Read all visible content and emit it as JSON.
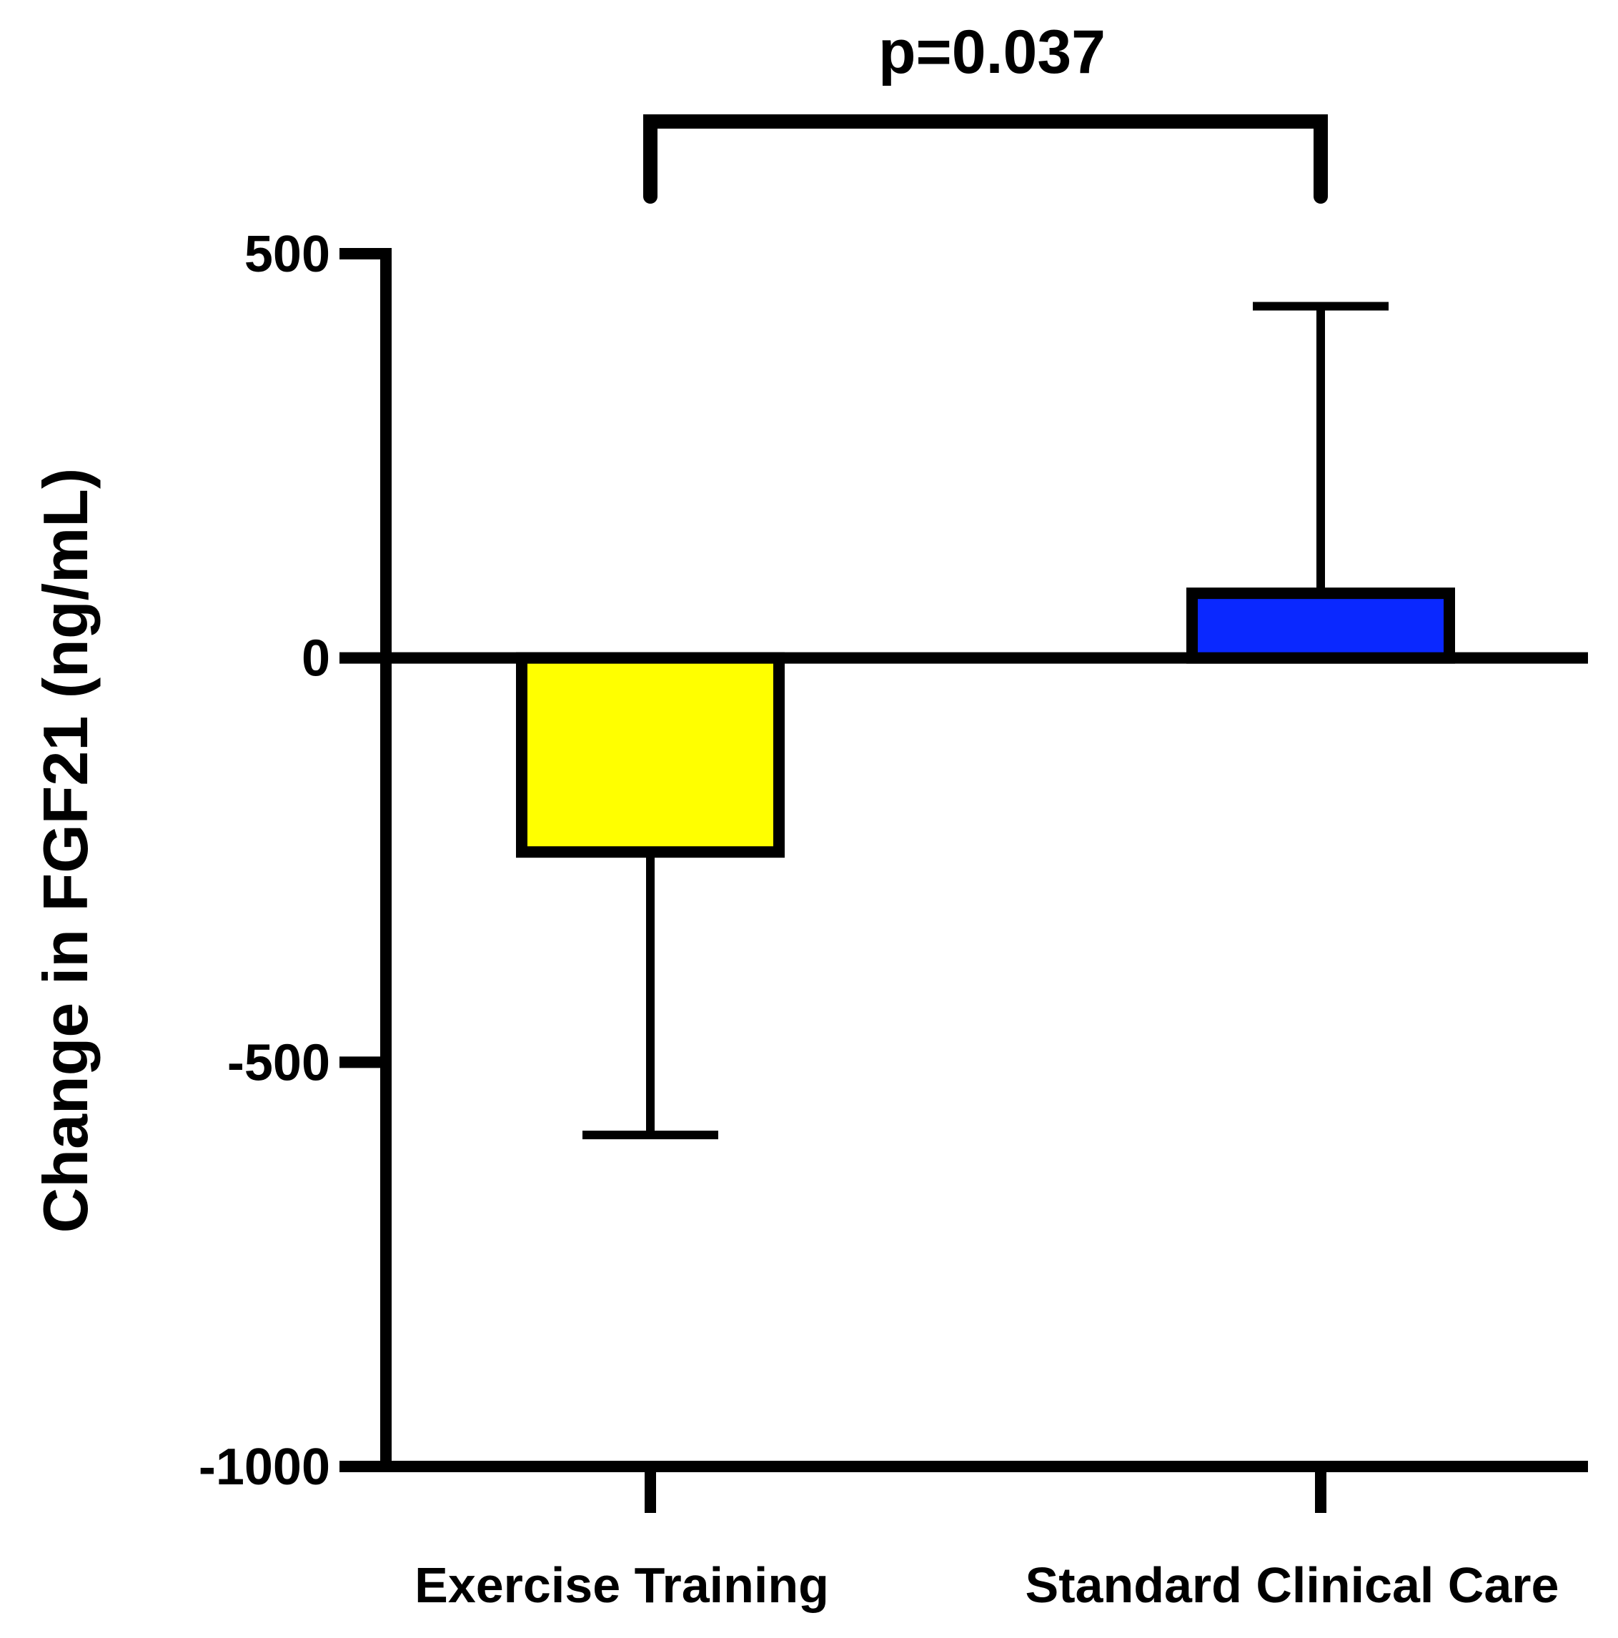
{
  "chart_data": {
    "type": "bar",
    "title": "",
    "xlabel": "",
    "ylabel": "Change in FGF21 (ng/mL)",
    "ylim": [
      -1000,
      500
    ],
    "yticks": [
      500,
      0,
      -500,
      -1000
    ],
    "ytick_labels": [
      "500",
      "0",
      "-500",
      "-1000"
    ],
    "categories": [
      "Exercise Training",
      "Standard Clinical Care"
    ],
    "values": [
      -240,
      80
    ],
    "error_bars": [
      {
        "direction": "down",
        "error": 350
      },
      {
        "direction": "up",
        "error": 355
      }
    ],
    "colors": [
      "#ffff00",
      "#0a28ff"
    ],
    "edge_color": "#000000",
    "grid": false,
    "legend": "none",
    "annotation": {
      "text": "p=0.037",
      "between": [
        "Exercise Training",
        "Standard Clinical Care"
      ]
    }
  }
}
